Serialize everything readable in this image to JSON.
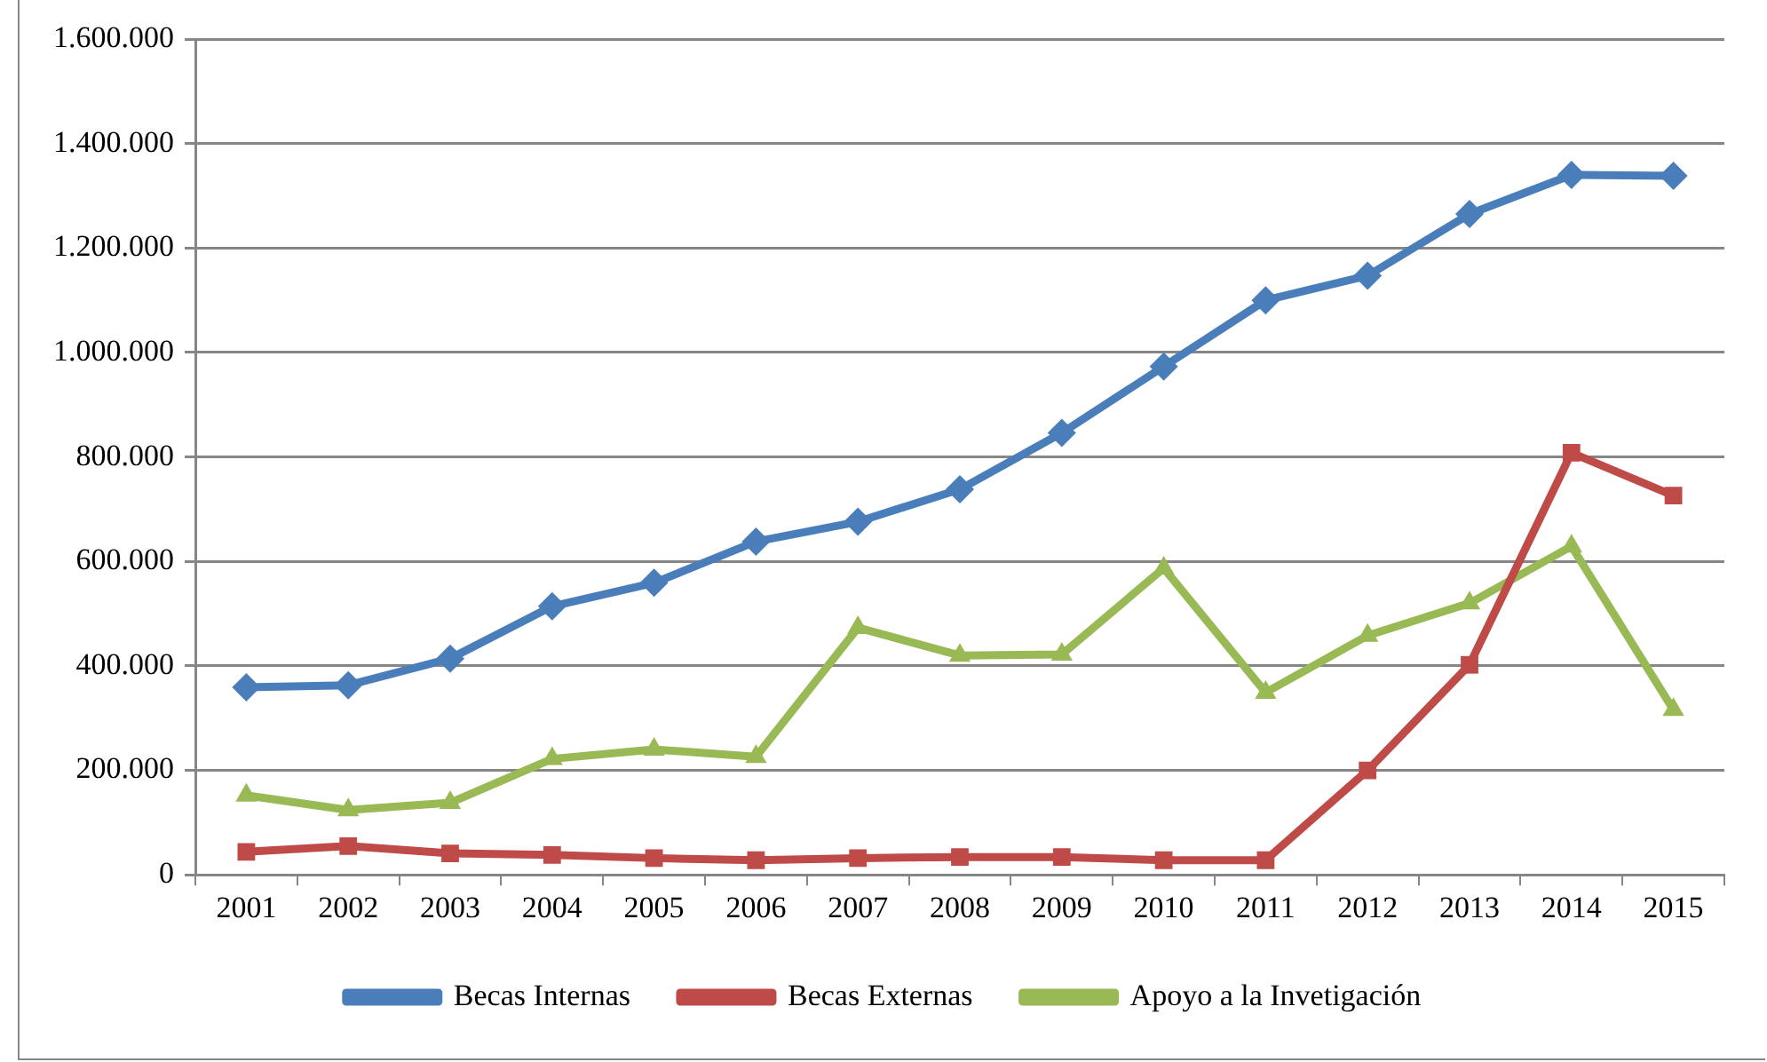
{
  "chart_data": {
    "type": "line",
    "categories": [
      "2001",
      "2002",
      "2003",
      "2004",
      "2005",
      "2006",
      "2007",
      "2008",
      "2009",
      "2010",
      "2011",
      "2012",
      "2013",
      "2014",
      "2015"
    ],
    "series": [
      {
        "name": "Becas Internas",
        "color": "#4a7ebb",
        "marker": "diamond",
        "values": [
          359000,
          363000,
          414000,
          514000,
          559000,
          638000,
          676000,
          738000,
          846000,
          973000,
          1100000,
          1147000,
          1265000,
          1340000,
          1338000
        ]
      },
      {
        "name": "Becas Externas",
        "color": "#be4b48",
        "marker": "square",
        "values": [
          44000,
          55000,
          41000,
          38000,
          32000,
          28000,
          32000,
          34000,
          34000,
          28000,
          28000,
          200000,
          402000,
          808000,
          726000
        ]
      },
      {
        "name": "Apoyo a la Invetigación",
        "color": "#98b954",
        "marker": "triangle",
        "values": [
          152000,
          124000,
          138000,
          222000,
          240000,
          226000,
          473000,
          420000,
          422000,
          587000,
          349000,
          458000,
          520000,
          629000,
          316000
        ]
      }
    ],
    "ylim": [
      0,
      1600000
    ],
    "yticks": [
      0,
      {
        "value": 200000,
        "label": "200.000"
      },
      {
        "value": 400000,
        "label": "400.000"
      },
      {
        "value": 600000,
        "label": "600.000"
      },
      {
        "value": 800000,
        "label": "800.000"
      },
      {
        "value": 1000000,
        "label": "1.000.000"
      },
      {
        "value": 1200000,
        "label": "1.200.000"
      },
      {
        "value": 1400000,
        "label": "1.400.000"
      },
      {
        "value": 1600000,
        "label": "1.600.000"
      }
    ],
    "grid": "y",
    "legend": "bottom",
    "line_style": "solid"
  }
}
